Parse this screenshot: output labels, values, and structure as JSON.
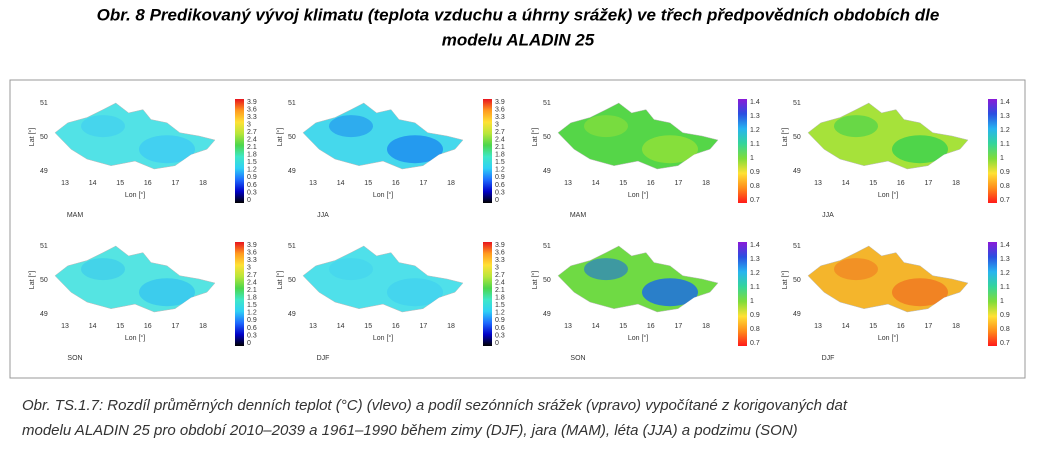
{
  "header": {
    "title_lines": [
      "Obr. 8 Predikovaný vývoj klimatu (teplota vzduchu a úhrny srážek) ve třech předpovědních obdobích dle",
      "modelu ALADIN 25"
    ]
  },
  "figure": {
    "lat_label": "Lat [°]",
    "lon_label": "Lon [°]",
    "lat_ticks": [
      "51",
      "50",
      "49"
    ],
    "lon_ticks": [
      "13",
      "14",
      "15",
      "16",
      "17",
      "18"
    ],
    "scales": {
      "temperature": {
        "ticks": [
          "3.9",
          "3.6",
          "3.3",
          "3",
          "2.7",
          "2.4",
          "2.1",
          "1.8",
          "1.5",
          "1.2",
          "0.9",
          "0.6",
          "0.3",
          "0"
        ],
        "colors": [
          "#000000",
          "#0000c8",
          "#1e6bff",
          "#2fd0f5",
          "#3fe8c8",
          "#4cd64c",
          "#b8e63a",
          "#ffe135",
          "#ff9a1f",
          "#e8141e"
        ]
      },
      "precipitation": {
        "ticks": [
          "1.4",
          "1.3",
          "1.2",
          "1.1",
          "1",
          "0.9",
          "0.8",
          "0.7"
        ],
        "colors": [
          "#ff1a1a",
          "#ff8c1a",
          "#ffe135",
          "#7fdc3a",
          "#35d59a",
          "#27b4f0",
          "#2a4fe0",
          "#8a1ad8"
        ]
      }
    },
    "panels": [
      {
        "label": "MAM",
        "scale": "temperature",
        "fill": "#52e2e6",
        "accent": "#3fcdf2"
      },
      {
        "label": "JJA",
        "scale": "temperature",
        "fill": "#45d8ec",
        "accent": "#1f8ff0"
      },
      {
        "label": "MAM",
        "scale": "precipitation",
        "fill": "#55d648",
        "accent": "#8fe03a"
      },
      {
        "label": "JJA",
        "scale": "precipitation",
        "fill": "#a6e23a",
        "accent": "#3fd24e"
      },
      {
        "label": "SON",
        "scale": "temperature",
        "fill": "#55e4e2",
        "accent": "#38c8ee"
      },
      {
        "label": "DJF",
        "scale": "temperature",
        "fill": "#4fe0ea",
        "accent": "#42d2ef"
      },
      {
        "label": "SON",
        "scale": "precipitation",
        "fill": "#6fda44",
        "accent": "#1e6ee0"
      },
      {
        "label": "DJF",
        "scale": "precipitation",
        "fill": "#f4b52c",
        "accent": "#f07a22"
      }
    ]
  },
  "caption": {
    "lines": [
      "Obr. TS.1.7: Rozdíl průměrných denních teplot (°C) (vlevo) a podíl sezónních srážek (vpravo) vypočítané z korigovaných dat",
      "modelu ALADIN 25 pro období 2010–2039 a 1961–1990 během zimy (DJF), jara (MAM), léta (JJA) a podzimu (SON)"
    ]
  }
}
